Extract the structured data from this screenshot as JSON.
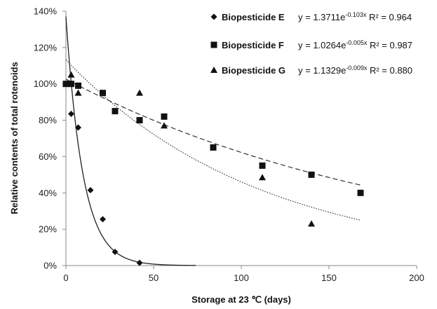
{
  "chart_data": {
    "type": "scatter",
    "title": "",
    "xlabel": "Storage at 23 ℃ (days)",
    "ylabel": "Relative contents of total rotenoids",
    "xlim": [
      0,
      200
    ],
    "ylim": [
      0,
      140
    ],
    "xticks": [
      "0",
      "50",
      "100",
      "150",
      "200"
    ],
    "yticks": [
      "0%",
      "20%",
      "40%",
      "60%",
      "80%",
      "100%",
      "120%",
      "140%"
    ],
    "grid": false,
    "legend_position": "top-right",
    "series": [
      {
        "name": "Biopesticide E",
        "marker": "diamond",
        "points": [
          [
            0,
            100
          ],
          [
            3,
            83.5
          ],
          [
            7,
            76
          ],
          [
            14,
            41.5
          ],
          [
            21,
            25.5
          ],
          [
            28,
            7.5
          ],
          [
            42,
            1.5
          ]
        ],
        "trend": {
          "type": "exponential",
          "a": 1.3711,
          "b": -0.103,
          "style": "solid",
          "x_end": 74,
          "eq_prefix": "y = 1.3711e",
          "eq_exp": "-0.103x",
          "eq_r2": "R² = 0.964"
        }
      },
      {
        "name": "Biopesticide F",
        "marker": "square",
        "points": [
          [
            0,
            100
          ],
          [
            3,
            100
          ],
          [
            7,
            99
          ],
          [
            21,
            95
          ],
          [
            28,
            85
          ],
          [
            42,
            80
          ],
          [
            56,
            82
          ],
          [
            84,
            65
          ],
          [
            112,
            55
          ],
          [
            140,
            50
          ],
          [
            168,
            40
          ]
        ],
        "trend": {
          "type": "exponential",
          "a": 1.0264,
          "b": -0.005,
          "style": "dashed",
          "x_end": 168,
          "eq_prefix": "y = 1.0264e",
          "eq_exp": "-0.005x",
          "eq_r2": "R² = 0.987"
        }
      },
      {
        "name": "Biopesticide G",
        "marker": "triangle",
        "points": [
          [
            0,
            100
          ],
          [
            3,
            105
          ],
          [
            7,
            95
          ],
          [
            42,
            95
          ],
          [
            56,
            77
          ],
          [
            112,
            48.5
          ],
          [
            140,
            23
          ]
        ],
        "trend": {
          "type": "exponential",
          "a": 1.1329,
          "b": -0.009,
          "style": "dotted",
          "x_end": 168,
          "eq_prefix": "y = 1.1329e",
          "eq_exp": "-0.009x",
          "eq_r2": "R² = 0.880"
        }
      }
    ]
  }
}
